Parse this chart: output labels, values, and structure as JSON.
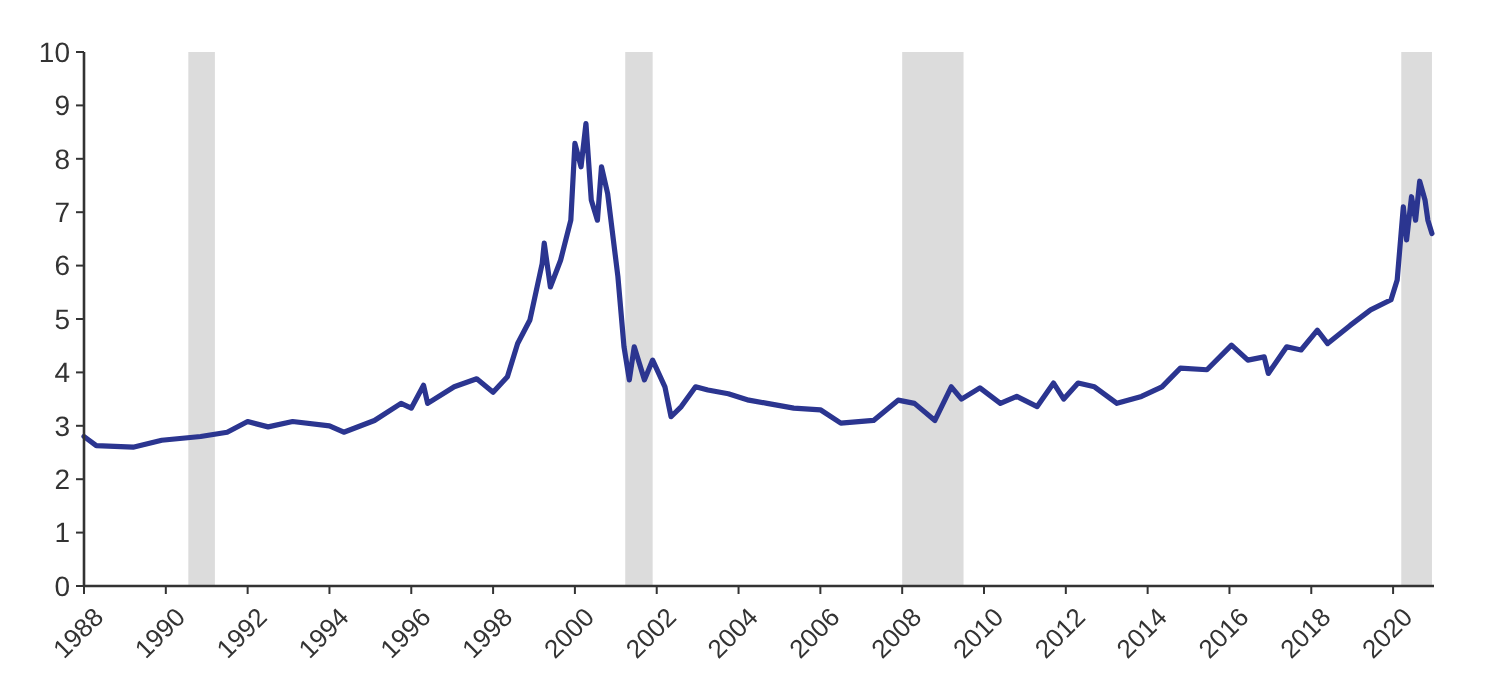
{
  "chart_data": {
    "type": "line",
    "xlim": [
      1988,
      2021
    ],
    "xticks": [
      1988,
      1990,
      1992,
      1994,
      1996,
      1998,
      2000,
      2002,
      2004,
      2006,
      2008,
      2010,
      2012,
      2014,
      2016,
      2018,
      2020
    ],
    "ylim": [
      0,
      10
    ],
    "yticks": [
      0,
      1,
      2,
      3,
      4,
      5,
      6,
      7,
      8,
      9,
      10
    ],
    "grid": false,
    "marker": "none",
    "line_style": "solid",
    "bands": [
      {
        "axis": "x",
        "from": 1990.55,
        "to": 1991.2,
        "color": "#dcdcdc"
      },
      {
        "axis": "x",
        "from": 2001.23,
        "to": 2001.9,
        "color": "#dcdcdc"
      },
      {
        "axis": "x",
        "from": 2008.0,
        "to": 2009.5,
        "color": "#dcdcdc"
      },
      {
        "axis": "x",
        "from": 2020.2,
        "to": 2020.95,
        "color": "#dcdcdc"
      }
    ],
    "series": [
      {
        "color": "#2b3590",
        "x": [
          1988.0,
          1988.3,
          1989.2,
          1989.9,
          1990.85,
          1991.5,
          1992.0,
          1992.5,
          1993.1,
          1994.0,
          1994.35,
          1995.1,
          1995.75,
          1996.0,
          1996.3,
          1996.4,
          1997.05,
          1997.6,
          1998.0,
          1998.35,
          1998.6,
          1998.9,
          1999.2,
          1999.25,
          1999.4,
          1999.65,
          1999.9,
          2000.0,
          2000.15,
          2000.27,
          2000.4,
          2000.55,
          2000.65,
          2000.8,
          2001.05,
          2001.2,
          2001.33,
          2001.45,
          2001.7,
          2001.9,
          2002.2,
          2002.35,
          2002.6,
          2002.95,
          2003.25,
          2003.75,
          2004.25,
          2004.7,
          2005.35,
          2006.0,
          2006.5,
          2007.3,
          2007.9,
          2008.3,
          2008.8,
          2009.2,
          2009.45,
          2009.9,
          2010.4,
          2010.8,
          2011.3,
          2011.7,
          2011.95,
          2012.3,
          2012.7,
          2013.25,
          2013.85,
          2014.35,
          2014.8,
          2015.45,
          2016.05,
          2016.45,
          2016.85,
          2016.95,
          2017.4,
          2017.75,
          2018.15,
          2018.4,
          2018.95,
          2019.45,
          2019.95,
          2020.1,
          2020.25,
          2020.33,
          2020.45,
          2020.55,
          2020.65,
          2020.78,
          2020.85,
          2020.95
        ],
        "values": [
          2.8,
          2.63,
          2.6,
          2.73,
          2.8,
          2.88,
          3.08,
          2.98,
          3.08,
          3.0,
          2.88,
          3.1,
          3.42,
          3.33,
          3.76,
          3.42,
          3.73,
          3.88,
          3.63,
          3.92,
          4.54,
          4.98,
          6.04,
          6.42,
          5.6,
          6.1,
          6.85,
          8.29,
          7.85,
          8.66,
          7.23,
          6.85,
          7.85,
          7.35,
          5.8,
          4.48,
          3.86,
          4.48,
          3.86,
          4.23,
          3.73,
          3.17,
          3.36,
          3.73,
          3.67,
          3.6,
          3.48,
          3.42,
          3.33,
          3.3,
          3.05,
          3.1,
          3.48,
          3.42,
          3.1,
          3.73,
          3.5,
          3.71,
          3.42,
          3.55,
          3.36,
          3.8,
          3.5,
          3.8,
          3.73,
          3.42,
          3.55,
          3.73,
          4.08,
          4.05,
          4.51,
          4.23,
          4.29,
          3.98,
          4.48,
          4.42,
          4.79,
          4.54,
          4.88,
          5.17,
          5.36,
          5.73,
          7.1,
          6.48,
          7.29,
          6.85,
          7.58,
          7.23,
          6.85,
          6.6
        ]
      }
    ]
  }
}
